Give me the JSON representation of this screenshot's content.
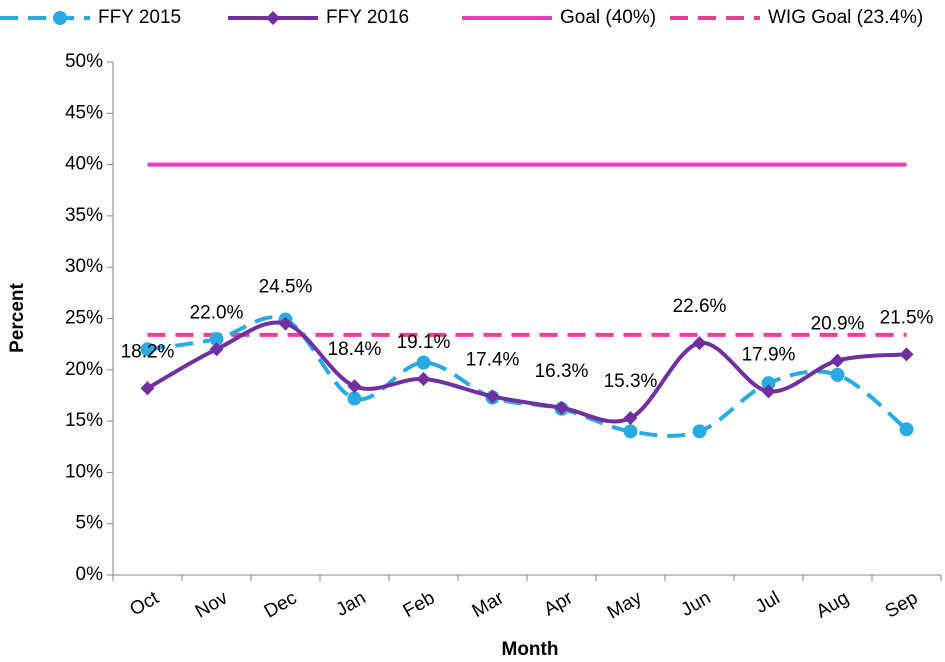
{
  "chart_data": {
    "type": "line",
    "x_label": "Month",
    "y_label": "Percent",
    "categories": [
      "Oct",
      "Nov",
      "Dec",
      "Jan",
      "Feb",
      "Mar",
      "Apr",
      "May",
      "Jun",
      "Jul",
      "Aug",
      "Sep"
    ],
    "series": [
      {
        "name": "FFY 2015",
        "color": "#29ABE2",
        "dashed": true,
        "marker": "circle",
        "values": [
          22.0,
          23.0,
          24.9,
          17.2,
          20.7,
          17.3,
          16.2,
          14.0,
          14.0,
          18.7,
          19.5,
          14.2
        ]
      },
      {
        "name": "FFY 2016",
        "color": "#7030A0",
        "dashed": false,
        "marker": "diamond",
        "values": [
          18.2,
          22.0,
          24.5,
          18.4,
          19.1,
          17.4,
          16.3,
          15.3,
          22.6,
          17.9,
          20.9,
          21.5
        ],
        "value_labels": [
          "18.2%",
          "22.0%",
          "24.5%",
          "18.4%",
          "19.1%",
          "17.4%",
          "16.3%",
          "15.3%",
          "22.6%",
          "17.9%",
          "20.9%",
          "21.5%"
        ]
      },
      {
        "name": "Goal (40%)",
        "color": "#E83DC0",
        "dashed": false,
        "marker": "none",
        "values": [
          40,
          40,
          40,
          40,
          40,
          40,
          40,
          40,
          40,
          40,
          40,
          40
        ]
      },
      {
        "name": "WIG Goal (23.4%)",
        "color": "#EC3F94",
        "dashed": true,
        "marker": "none",
        "values": [
          23.4,
          23.4,
          23.4,
          23.4,
          23.4,
          23.4,
          23.4,
          23.4,
          23.4,
          23.4,
          23.4,
          23.4
        ]
      }
    ],
    "ylim": [
      0,
      50
    ],
    "yticks": [
      {
        "value": 0,
        "label": "0%"
      },
      {
        "value": 5,
        "label": "5%"
      },
      {
        "value": 10,
        "label": "10%"
      },
      {
        "value": 15,
        "label": "15%"
      },
      {
        "value": 20,
        "label": "20%"
      },
      {
        "value": 25,
        "label": "25%"
      },
      {
        "value": 30,
        "label": "30%"
      },
      {
        "value": 35,
        "label": "35%"
      },
      {
        "value": 40,
        "label": "40%"
      },
      {
        "value": 45,
        "label": "45%"
      },
      {
        "value": 50,
        "label": "50%"
      }
    ],
    "legend": "top",
    "grid": false
  }
}
